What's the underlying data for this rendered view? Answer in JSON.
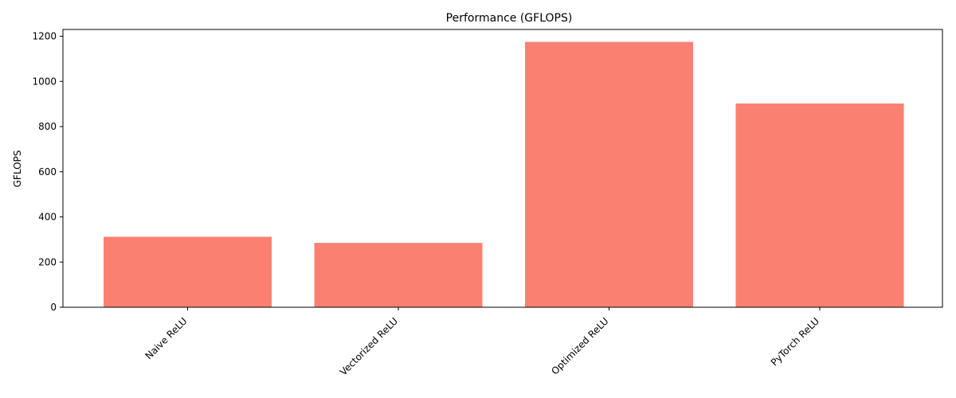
{
  "chart_data": {
    "type": "bar",
    "title": "Performance (GFLOPS)",
    "xlabel": "",
    "ylabel": "GFLOPS",
    "categories": [
      "Naive ReLU",
      "Vectorized ReLU",
      "Optimized ReLU",
      "PyTorch ReLU"
    ],
    "values": [
      312,
      285,
      1175,
      902
    ],
    "ylim": [
      0,
      1230
    ],
    "yticks": [
      0,
      200,
      400,
      600,
      800,
      1000,
      1200
    ],
    "bar_color": "#fa8072",
    "grid": false,
    "legend": "none"
  }
}
